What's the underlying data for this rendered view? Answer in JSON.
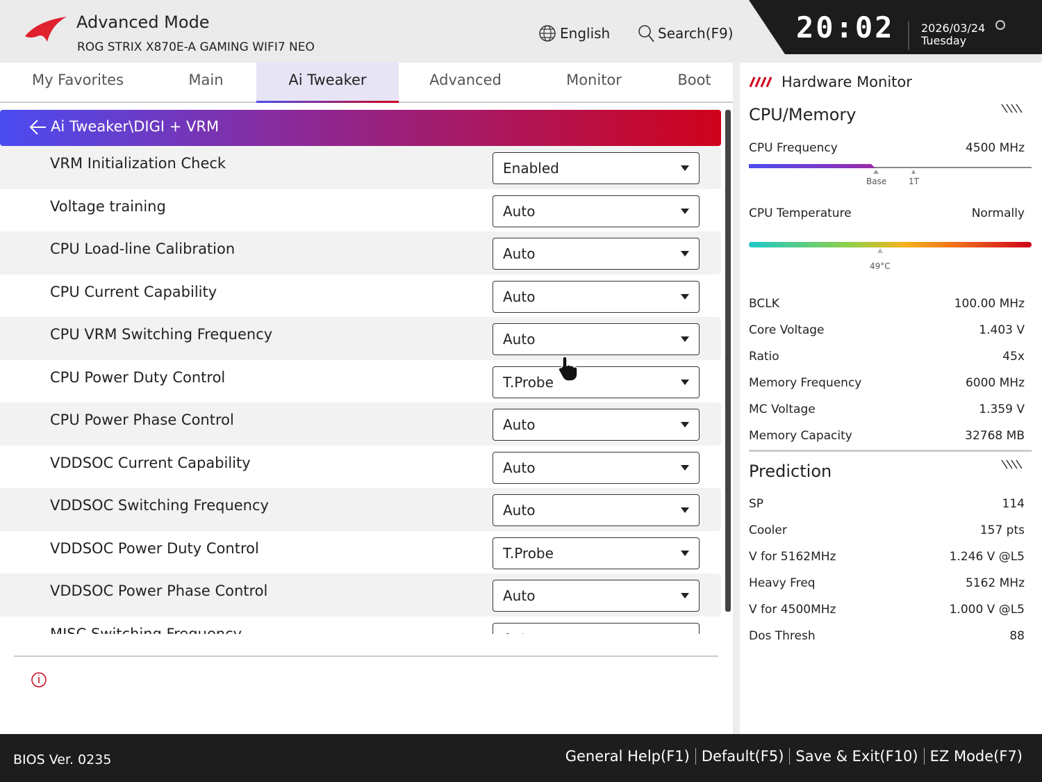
{
  "header": {
    "title": "Advanced Mode",
    "model": "ROG STRIX X870E-A GAMING WIFI7 NEO",
    "language": "English",
    "search": "Search(F9)",
    "time": "20:02",
    "date": "2026/03/24",
    "day": "Tuesday"
  },
  "tabs": [
    "My Favorites",
    "Main",
    "Ai Tweaker",
    "Advanced",
    "Monitor",
    "Boot"
  ],
  "breadcrumb": "Ai Tweaker\\DIGI + VRM",
  "settings": [
    {
      "label": "VRM Initialization Check",
      "value": "Enabled"
    },
    {
      "label": "Voltage training",
      "value": "Auto"
    },
    {
      "label": "CPU Load-line Calibration",
      "value": "Auto"
    },
    {
      "label": "CPU Current Capability",
      "value": "Auto"
    },
    {
      "label": "CPU VRM Switching Frequency",
      "value": "Auto"
    },
    {
      "label": "CPU Power Duty Control",
      "value": "T.Probe"
    },
    {
      "label": "CPU Power Phase Control",
      "value": "Auto"
    },
    {
      "label": "VDDSOC Current Capability",
      "value": "Auto"
    },
    {
      "label": "VDDSOC Switching Frequency",
      "value": "Auto"
    },
    {
      "label": "VDDSOC Power Duty Control",
      "value": "T.Probe"
    },
    {
      "label": "VDDSOC Power Phase Control",
      "value": "Auto"
    },
    {
      "label": "MISC Switching Frequency",
      "value": "Auto"
    }
  ],
  "monitor": {
    "title": "Hardware Monitor",
    "section": "CPU/Memory",
    "cpu_frequency": {
      "label": "CPU Frequency",
      "value": "4500 MHz",
      "markers": [
        "Base",
        "1T"
      ]
    },
    "cpu_temperature": {
      "label": "CPU Temperature",
      "value": "Normally",
      "marker": "49°C"
    },
    "stats": [
      {
        "label": "BCLK",
        "value": "100.00 MHz"
      },
      {
        "label": "Core Voltage",
        "value": "1.403 V"
      },
      {
        "label": "Ratio",
        "value": "45x"
      },
      {
        "label": "Memory Frequency",
        "value": "6000 MHz"
      },
      {
        "label": "MC Voltage",
        "value": "1.359 V"
      },
      {
        "label": "Memory Capacity",
        "value": "32768 MB"
      }
    ],
    "prediction_title": "Prediction",
    "prediction": [
      {
        "label": "SP",
        "value": "114"
      },
      {
        "label": "Cooler",
        "value": "157 pts"
      },
      {
        "label": "V for 5162MHz",
        "value": "1.246 V @L5"
      },
      {
        "label": "Heavy Freq",
        "value": "5162 MHz"
      },
      {
        "label": "V for 4500MHz",
        "value": "1.000 V @L5"
      },
      {
        "label": "Dos Thresh",
        "value": "88"
      }
    ]
  },
  "footer": {
    "version": "BIOS Ver. 0235",
    "keys": [
      "General Help(F1)",
      "Default(F5)",
      "Save & Exit(F10)",
      "EZ Mode(F7)"
    ]
  }
}
